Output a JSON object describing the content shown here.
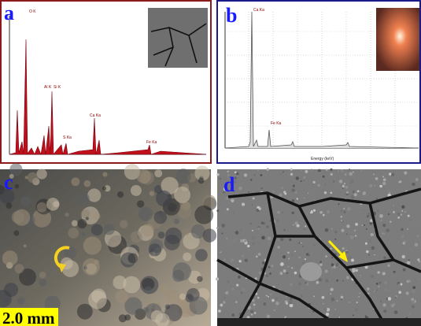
{
  "panels": [
    {
      "label": "a",
      "peak_labels": [
        "O K",
        "Al K",
        "Si K",
        "S Ka",
        "Ca Ka",
        "Fe Ka"
      ]
    },
    {
      "label": "b",
      "peak_labels": [
        "Ca Ka",
        "Fe Ka"
      ],
      "x_label": "Energy (keV)"
    },
    {
      "label": "c",
      "scale_bar": "2.0 mm"
    },
    {
      "label": "d"
    }
  ]
}
